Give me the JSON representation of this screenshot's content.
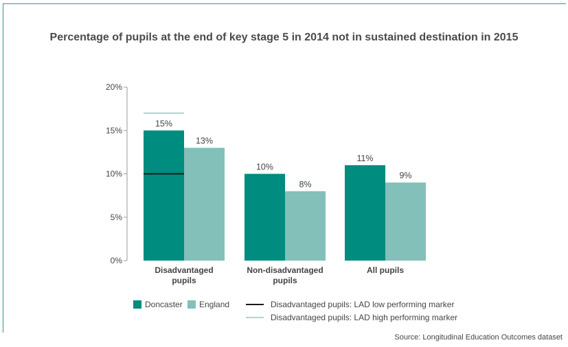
{
  "title": "Percentage of pupils at the end of key stage 5 in 2014 not in sustained destination in 2015",
  "source": "Source: Longitudinal Education Outcomes dataset",
  "colors": {
    "doncaster": "#008c7e",
    "england": "#83c0ba",
    "low_marker": "#1a1a1a",
    "high_marker": "#a8d8d2",
    "frame": "#2a9a8c"
  },
  "chart_data": {
    "type": "bar",
    "categories": [
      [
        "Disadvantaged",
        "pupils"
      ],
      [
        "Non-disadvantaged",
        "pupils"
      ],
      [
        "All pupils"
      ]
    ],
    "series": [
      {
        "name": "Doncaster",
        "values": [
          15,
          10,
          11
        ],
        "labels": [
          "15%",
          "10%",
          "11%"
        ]
      },
      {
        "name": "England",
        "values": [
          13,
          8,
          9
        ],
        "labels": [
          "13%",
          "8%",
          "9%"
        ]
      }
    ],
    "markers": [
      {
        "name": "Disadvantaged pupils: LAD low performing marker",
        "category": 0,
        "value": 10
      },
      {
        "name": "Disadvantaged pupils: LAD high performing marker",
        "category": 0,
        "value": 17
      }
    ],
    "ylim": [
      0,
      20
    ],
    "yticks": [
      0,
      5,
      10,
      15,
      20
    ],
    "ytick_labels": [
      "0%",
      "5%",
      "10%",
      "15%",
      "20%"
    ],
    "grid": false,
    "legend_position": "bottom"
  },
  "legend": {
    "doncaster": "Doncaster",
    "england": "England",
    "low_marker": "Disadvantaged pupils: LAD low performing marker",
    "high_marker": "Disadvantaged pupils: LAD high performing marker"
  }
}
